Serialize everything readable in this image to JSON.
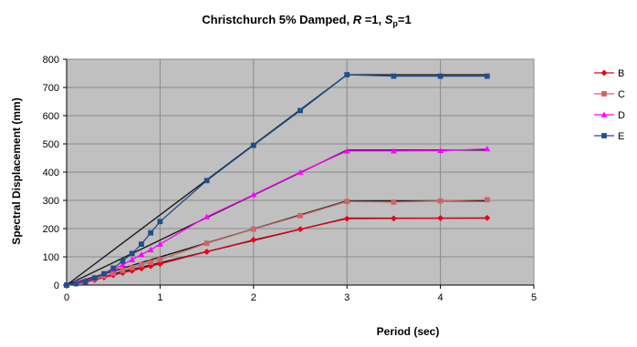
{
  "chart_data": {
    "type": "line",
    "title": {
      "prefix": "Christchurch 5%  Damped, ",
      "r_symbol": "R",
      "r_value": " =1, ",
      "s_symbol": "S",
      "s_sub": "p",
      "s_value": "=1"
    },
    "xlabel": "Period (sec)",
    "ylabel": "Spectral Displacement  (mm)",
    "xlim": [
      0,
      5
    ],
    "ylim": [
      0,
      800
    ],
    "xticks": [
      0,
      1,
      2,
      3,
      4,
      5
    ],
    "yticks": [
      0,
      100,
      200,
      300,
      400,
      500,
      600,
      700,
      800
    ],
    "grid": true,
    "plot_background": "#c0c0c0",
    "legend_position": "right",
    "series": [
      {
        "name": "B",
        "color": "#e8001a",
        "marker": "diamond",
        "x": [
          0,
          0.1,
          0.2,
          0.3,
          0.4,
          0.5,
          0.6,
          0.7,
          0.8,
          0.9,
          1.0,
          1.5,
          2.0,
          2.5,
          3.0,
          3.5,
          4.0,
          4.5
        ],
        "y": [
          0,
          5,
          10,
          18,
          27,
          35,
          43,
          51,
          59,
          67,
          75,
          118,
          160,
          198,
          235,
          236,
          237,
          238
        ]
      },
      {
        "name": "C",
        "color": "#cc6666",
        "marker": "square",
        "x": [
          0,
          0.1,
          0.2,
          0.3,
          0.4,
          0.5,
          0.6,
          0.7,
          0.8,
          0.9,
          1.0,
          1.5,
          2.0,
          2.5,
          3.0,
          3.5,
          4.0,
          4.5
        ],
        "y": [
          0,
          6,
          12,
          22,
          32,
          42,
          52,
          62,
          72,
          80,
          90,
          148,
          198,
          246,
          296,
          294,
          298,
          302
        ]
      },
      {
        "name": "D",
        "color": "#ff00ff",
        "marker": "triangle",
        "x": [
          0,
          0.1,
          0.2,
          0.3,
          0.4,
          0.5,
          0.6,
          0.7,
          0.8,
          0.9,
          1.0,
          1.5,
          2.0,
          2.5,
          3.0,
          3.5,
          4.0,
          4.5
        ],
        "y": [
          0,
          8,
          16,
          27,
          40,
          55,
          72,
          90,
          108,
          125,
          145,
          242,
          320,
          400,
          475,
          475,
          476,
          482
        ]
      },
      {
        "name": "E",
        "color": "#1f4e8c",
        "marker": "square",
        "x": [
          0,
          0.1,
          0.2,
          0.3,
          0.4,
          0.5,
          0.6,
          0.7,
          0.8,
          0.9,
          1.0,
          1.5,
          2.0,
          2.5,
          3.0,
          3.5,
          4.0,
          4.5
        ],
        "y": [
          0,
          5,
          12,
          25,
          40,
          60,
          85,
          112,
          145,
          185,
          225,
          370,
          495,
          618,
          745,
          740,
          740,
          740
        ]
      }
    ],
    "reference_lines": [
      {
        "color": "#1a1a1a",
        "x": [
          0,
          3,
          4.5
        ],
        "y": [
          0,
          745,
          745
        ]
      },
      {
        "color": "#1a1a1a",
        "x": [
          0,
          3,
          4.5
        ],
        "y": [
          0,
          478,
          478
        ]
      },
      {
        "color": "#1a1a1a",
        "x": [
          0,
          3,
          4.5
        ],
        "y": [
          0,
          298,
          298
        ]
      },
      {
        "color": "#1a1a1a",
        "x": [
          0,
          3,
          4.5
        ],
        "y": [
          0,
          237,
          237
        ]
      }
    ]
  }
}
